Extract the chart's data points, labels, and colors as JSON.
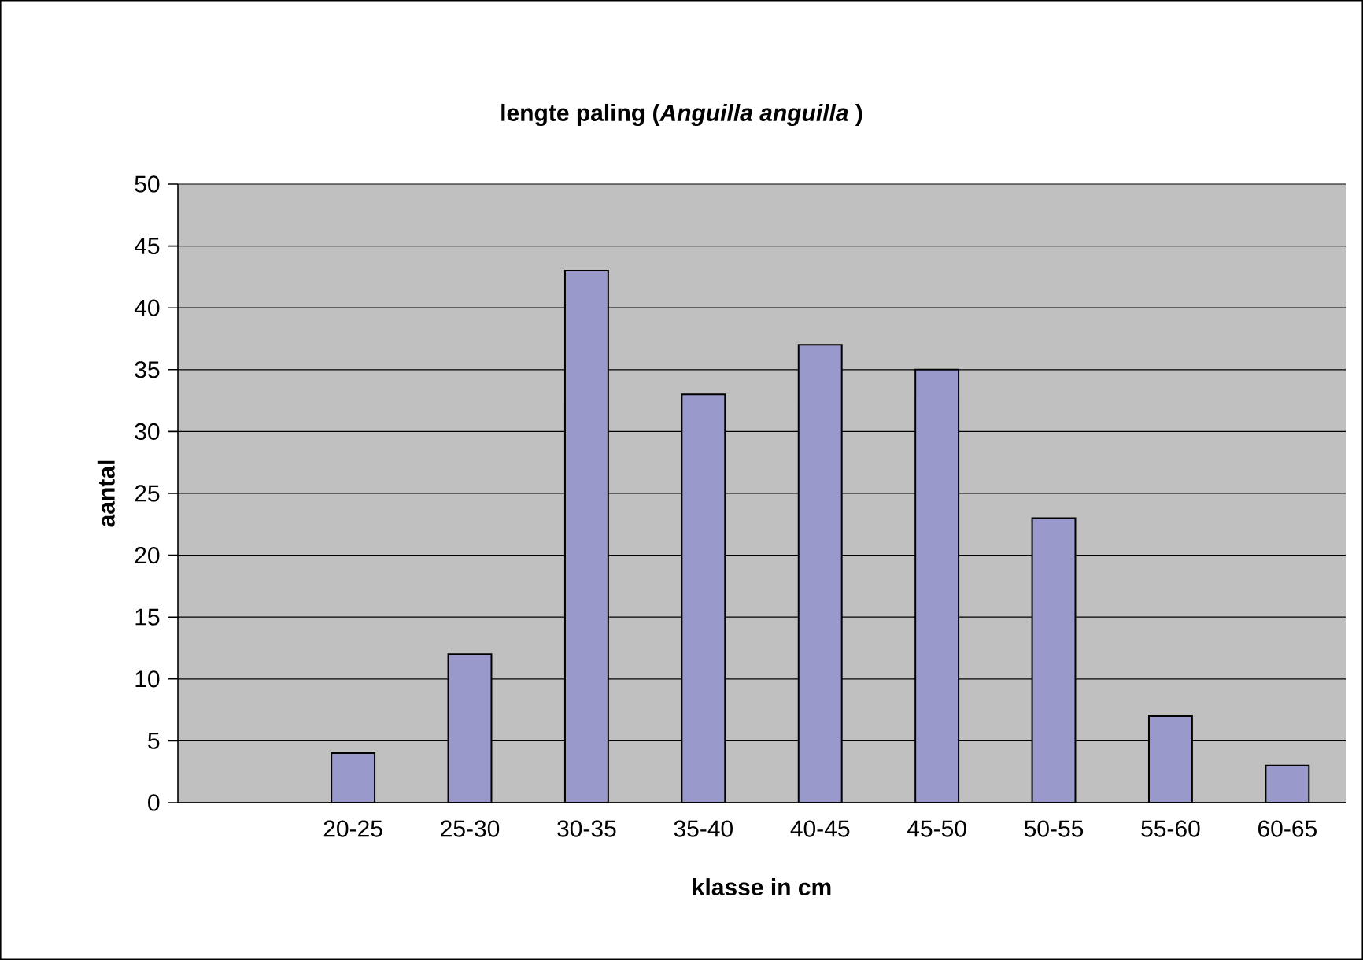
{
  "chart_data": {
    "type": "bar",
    "title": "lengte paling (*Anguilla anguilla* )",
    "xlabel": "klasse in cm",
    "ylabel": "aantal",
    "categories": [
      null,
      "20-25",
      "25-30",
      "30-35",
      "35-40",
      "40-45",
      "45-50",
      "50-55",
      "55-60",
      "60-65"
    ],
    "values": [
      null,
      4,
      12,
      43,
      33,
      37,
      35,
      23,
      7,
      3
    ],
    "color": "#9999cc",
    "ylim": [
      0,
      50
    ],
    "yticks": [
      0,
      5,
      10,
      15,
      20,
      25,
      30,
      35,
      40,
      45,
      50
    ],
    "grid": "y"
  }
}
